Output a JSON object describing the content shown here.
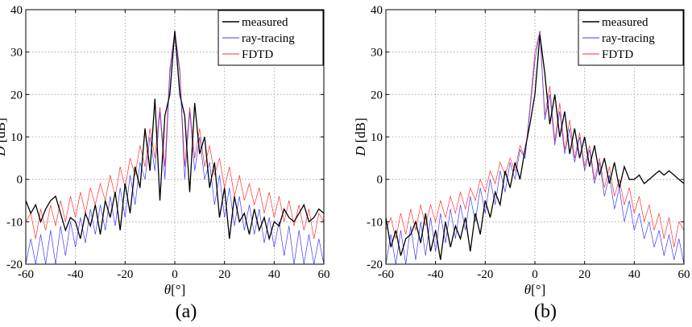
{
  "chart_data": [
    {
      "type": "line",
      "caption": "(a)",
      "xlabel_symbol": "θ",
      "xlabel_unit": "[°]",
      "ylabel_symbol": "D",
      "ylabel_unit": "[dB]",
      "xlim": [
        -60,
        60
      ],
      "ylim": [
        -20,
        40
      ],
      "xticks": [
        -60,
        -40,
        -20,
        0,
        20,
        40,
        60
      ],
      "yticks": [
        -20,
        -10,
        0,
        10,
        20,
        30,
        40
      ],
      "grid": true,
      "legend_position": "top-right",
      "series": [
        {
          "name": "measured",
          "color": "#000000",
          "x": [
            -60,
            -58,
            -56,
            -54,
            -52,
            -50,
            -48,
            -46,
            -44,
            -42,
            -40,
            -38,
            -36,
            -34,
            -32,
            -30,
            -28,
            -26,
            -24,
            -22,
            -20,
            -18,
            -16,
            -14,
            -12,
            -10,
            -8,
            -6,
            -4,
            -2,
            0,
            2,
            4,
            6,
            8,
            10,
            12,
            14,
            16,
            18,
            20,
            22,
            24,
            26,
            28,
            30,
            32,
            34,
            36,
            38,
            40,
            42,
            44,
            46,
            48,
            50,
            52,
            54,
            56,
            58,
            60
          ],
          "y": [
            -5,
            -8,
            -6,
            -10,
            -7,
            -5,
            -4,
            -8,
            -12,
            -9,
            -10,
            -14,
            -8,
            -11,
            -6,
            -13,
            -5,
            -9,
            -3,
            -12,
            -1,
            -8,
            3,
            -2,
            12,
            2,
            19,
            -5,
            15,
            20,
            35,
            20,
            15,
            -3,
            18,
            6,
            10,
            -2,
            4,
            -9,
            -2,
            -14,
            -4,
            -10,
            -8,
            -13,
            -7,
            -12,
            -9,
            -14,
            -10,
            -11,
            -7,
            -9,
            -10,
            -8,
            -6,
            -10,
            -9,
            -7,
            -8
          ]
        },
        {
          "name": "ray-tracing",
          "color": "#3b3bff",
          "x": [
            -60,
            -58,
            -56,
            -54,
            -52,
            -50,
            -48,
            -46,
            -44,
            -42,
            -40,
            -38,
            -36,
            -34,
            -32,
            -30,
            -28,
            -26,
            -24,
            -22,
            -20,
            -18,
            -16,
            -14,
            -12,
            -10,
            -8,
            -6,
            -4,
            -2,
            0,
            2,
            4,
            6,
            8,
            10,
            12,
            14,
            16,
            18,
            20,
            22,
            24,
            26,
            28,
            30,
            32,
            34,
            36,
            38,
            40,
            42,
            44,
            46,
            48,
            50,
            52,
            54,
            56,
            58,
            60
          ],
          "y": [
            -20,
            -14,
            -20,
            -13,
            -20,
            -12,
            -20,
            -11,
            -18,
            -10,
            -16,
            -9,
            -15,
            -7,
            -13,
            -6,
            -12,
            -4,
            -11,
            -2,
            -9,
            1,
            -6,
            4,
            0,
            10,
            2,
            16,
            0,
            25,
            35,
            25,
            0,
            16,
            2,
            10,
            0,
            4,
            -6,
            1,
            -9,
            -2,
            -11,
            -4,
            -12,
            -6,
            -13,
            -7,
            -15,
            -9,
            -16,
            -10,
            -18,
            -11,
            -20,
            -12,
            -20,
            -13,
            -20,
            -14,
            -20
          ]
        },
        {
          "name": "FDTD",
          "color": "#ff3030",
          "x": [
            -60,
            -58,
            -56,
            -54,
            -52,
            -50,
            -48,
            -46,
            -44,
            -42,
            -40,
            -38,
            -36,
            -34,
            -32,
            -30,
            -28,
            -26,
            -24,
            -22,
            -20,
            -18,
            -16,
            -14,
            -12,
            -10,
            -8,
            -6,
            -4,
            -2,
            0,
            2,
            4,
            6,
            8,
            10,
            12,
            14,
            16,
            18,
            20,
            22,
            24,
            26,
            28,
            30,
            32,
            34,
            36,
            38,
            40,
            42,
            44,
            46,
            48,
            50,
            52,
            54,
            56,
            58,
            60
          ],
          "y": [
            -10,
            -8,
            -14,
            -7,
            -12,
            -6,
            -11,
            -5,
            -10,
            -4,
            -9,
            -3,
            -8,
            -2,
            -6,
            -1,
            -5,
            1,
            -4,
            3,
            -2,
            5,
            1,
            8,
            3,
            12,
            5,
            17,
            3,
            26,
            35,
            26,
            3,
            17,
            5,
            12,
            3,
            8,
            1,
            5,
            -2,
            3,
            -4,
            1,
            -5,
            -1,
            -6,
            -2,
            -8,
            -3,
            -9,
            -4,
            -10,
            -5,
            -11,
            -6,
            -12,
            -7,
            -14,
            -8,
            -10
          ]
        }
      ]
    },
    {
      "type": "line",
      "caption": "(b)",
      "xlabel_symbol": "θ",
      "xlabel_unit": "[°]",
      "ylabel_symbol": "D",
      "ylabel_unit": "[dB]",
      "xlim": [
        -60,
        60
      ],
      "ylim": [
        -20,
        40
      ],
      "xticks": [
        -60,
        -40,
        -20,
        0,
        20,
        40,
        60
      ],
      "yticks": [
        -20,
        -10,
        0,
        10,
        20,
        30,
        40
      ],
      "grid": true,
      "legend_position": "top-right",
      "series": [
        {
          "name": "measured",
          "color": "#000000",
          "x": [
            -60,
            -58,
            -56,
            -54,
            -52,
            -50,
            -48,
            -46,
            -44,
            -42,
            -40,
            -38,
            -36,
            -34,
            -32,
            -30,
            -28,
            -26,
            -24,
            -22,
            -20,
            -18,
            -16,
            -14,
            -12,
            -10,
            -8,
            -6,
            -4,
            -2,
            0,
            2,
            4,
            6,
            8,
            10,
            12,
            14,
            16,
            18,
            20,
            22,
            24,
            26,
            28,
            30,
            32,
            34,
            36,
            38,
            40,
            42,
            44,
            46,
            48,
            50,
            52,
            54,
            56,
            58,
            60
          ],
          "y": [
            -9,
            -16,
            -12,
            -18,
            -14,
            -13,
            -10,
            -15,
            -8,
            -17,
            -12,
            -19,
            -10,
            -16,
            -11,
            -14,
            -9,
            -17,
            -8,
            -13,
            -5,
            -9,
            -3,
            -6,
            2,
            -2,
            4,
            0,
            7,
            13,
            20,
            34,
            25,
            13,
            20,
            10,
            16,
            6,
            12,
            5,
            10,
            3,
            8,
            1,
            5,
            -1,
            4,
            -2,
            3,
            0,
            0,
            1,
            -1,
            0,
            1,
            2,
            1,
            2,
            1,
            0,
            -1
          ]
        },
        {
          "name": "ray-tracing",
          "color": "#3b3bff",
          "x": [
            -60,
            -58,
            -56,
            -54,
            -52,
            -50,
            -48,
            -46,
            -44,
            -42,
            -40,
            -38,
            -36,
            -34,
            -32,
            -30,
            -28,
            -26,
            -24,
            -22,
            -20,
            -18,
            -16,
            -14,
            -12,
            -10,
            -8,
            -6,
            -4,
            -2,
            0,
            2,
            4,
            6,
            8,
            10,
            12,
            14,
            16,
            18,
            20,
            22,
            24,
            26,
            28,
            30,
            32,
            34,
            36,
            38,
            40,
            42,
            44,
            46,
            48,
            50,
            52,
            54,
            56,
            58,
            60
          ],
          "y": [
            -20,
            -13,
            -20,
            -12,
            -20,
            -11,
            -19,
            -10,
            -18,
            -9,
            -17,
            -8,
            -15,
            -7,
            -14,
            -6,
            -12,
            -4,
            -10,
            -2,
            -8,
            0,
            -6,
            2,
            -3,
            4,
            0,
            7,
            5,
            16,
            28,
            35,
            14,
            20,
            8,
            16,
            6,
            12,
            4,
            10,
            2,
            7,
            -1,
            4,
            -4,
            1,
            -7,
            -2,
            -10,
            -5,
            -12,
            -8,
            -14,
            -10,
            -16,
            -12,
            -18,
            -13,
            -19,
            -14,
            -20
          ]
        },
        {
          "name": "FDTD",
          "color": "#ff3030",
          "x": [
            -60,
            -58,
            -56,
            -54,
            -52,
            -50,
            -48,
            -46,
            -44,
            -42,
            -40,
            -38,
            -36,
            -34,
            -32,
            -30,
            -28,
            -26,
            -24,
            -22,
            -20,
            -18,
            -16,
            -14,
            -12,
            -10,
            -8,
            -6,
            -4,
            -2,
            0,
            2,
            4,
            6,
            8,
            10,
            12,
            14,
            16,
            18,
            20,
            22,
            24,
            26,
            28,
            30,
            32,
            34,
            36,
            38,
            40,
            42,
            44,
            46,
            48,
            50,
            52,
            54,
            56,
            58,
            60
          ],
          "y": [
            -12,
            -9,
            -14,
            -8,
            -13,
            -7,
            -12,
            -6,
            -11,
            -6,
            -10,
            -5,
            -9,
            -4,
            -8,
            -3,
            -7,
            -2,
            -5,
            0,
            -3,
            2,
            -1,
            4,
            1,
            5,
            2,
            8,
            5,
            17,
            30,
            35,
            15,
            22,
            9,
            18,
            7,
            14,
            5,
            11,
            3,
            8,
            0,
            5,
            -2,
            3,
            -4,
            0,
            -6,
            -2,
            -8,
            -4,
            -10,
            -6,
            -12,
            -8,
            -14,
            -9,
            -16,
            -10,
            -12
          ]
        }
      ]
    }
  ]
}
